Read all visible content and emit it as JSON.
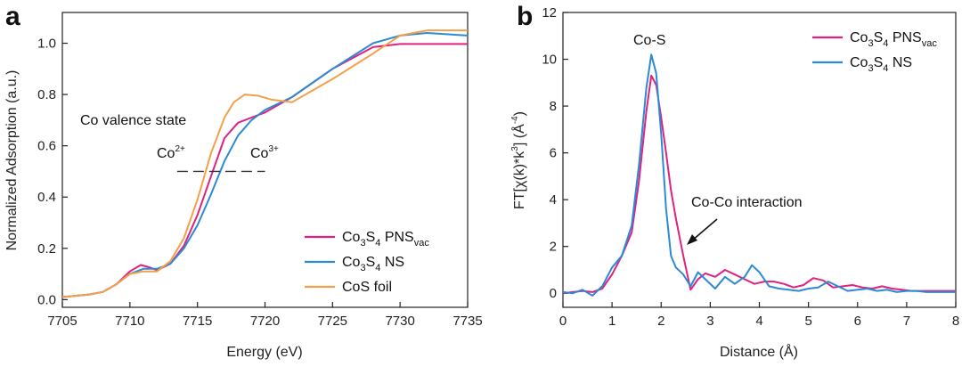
{
  "chart_data": [
    {
      "panel": "a",
      "type": "line",
      "xlabel": "Energy (eV)",
      "ylabel": "Normalized Adsorption (a.u.)",
      "xlim": [
        7705,
        7735
      ],
      "ylim": [
        -0.03,
        1.12
      ],
      "xticks": [
        7705,
        7710,
        7715,
        7720,
        7725,
        7730,
        7735
      ],
      "yticks": [
        0.0,
        0.2,
        0.4,
        0.6,
        0.8,
        1.0
      ],
      "ytick_labels": [
        "0.0",
        "0.2",
        "0.4",
        "0.6",
        "0.8",
        "1.0"
      ],
      "annotations": {
        "title_line": "Co valence state",
        "co2": "Co",
        "co2_sup": "2+",
        "co3": "Co",
        "co3_sup": "3+",
        "dash_range": [
          7713.5,
          7720
        ],
        "dash_y": 0.5
      },
      "series": [
        {
          "name": "Co3S4 PNSvac",
          "label_parts": [
            "Co",
            "3",
            "S",
            "4",
            " PNS",
            "vac"
          ],
          "color": "#e0217f",
          "x": [
            7705,
            7707,
            7708,
            7709,
            7710,
            7710.8,
            7711.5,
            7712,
            7713,
            7714,
            7715,
            7716,
            7717,
            7718,
            7719,
            7720,
            7722,
            7725,
            7728,
            7730,
            7735
          ],
          "y": [
            0.01,
            0.02,
            0.03,
            0.06,
            0.11,
            0.135,
            0.125,
            0.115,
            0.14,
            0.21,
            0.33,
            0.48,
            0.63,
            0.69,
            0.71,
            0.73,
            0.79,
            0.9,
            0.985,
            0.997,
            0.997
          ]
        },
        {
          "name": "Co3S4 NS",
          "label_parts": [
            "Co",
            "3",
            "S",
            "4",
            " NS",
            ""
          ],
          "color": "#2b8ad6",
          "x": [
            7705,
            7707,
            7708,
            7709,
            7710,
            7711,
            7712,
            7713,
            7714,
            7715,
            7716,
            7717,
            7718,
            7719,
            7720,
            7722,
            7725,
            7728,
            7730,
            7732,
            7735
          ],
          "y": [
            0.01,
            0.02,
            0.03,
            0.06,
            0.1,
            0.12,
            0.12,
            0.14,
            0.2,
            0.29,
            0.41,
            0.54,
            0.64,
            0.7,
            0.74,
            0.79,
            0.9,
            1.0,
            1.03,
            1.04,
            1.03
          ]
        },
        {
          "name": "CoS foil",
          "label_parts": [
            "CoS foil",
            "",
            "",
            "",
            "",
            ""
          ],
          "color": "#f3a04a",
          "x": [
            7705,
            7707,
            7708,
            7709,
            7710,
            7711,
            7712,
            7713,
            7714,
            7715,
            7716,
            7717,
            7717.7,
            7718.5,
            7719.5,
            7720.5,
            7722,
            7725,
            7728,
            7730,
            7732,
            7735
          ],
          "y": [
            0.01,
            0.02,
            0.03,
            0.06,
            0.1,
            0.11,
            0.11,
            0.15,
            0.24,
            0.39,
            0.57,
            0.71,
            0.77,
            0.8,
            0.795,
            0.78,
            0.77,
            0.86,
            0.96,
            1.03,
            1.05,
            1.05
          ]
        }
      ],
      "legend_position": "bottom-right"
    },
    {
      "panel": "b",
      "type": "line",
      "xlabel": "Distance (Å)",
      "ylabel_parts": [
        "FT[χ(k)*k",
        "3",
        "] (Å",
        "-4",
        ")"
      ],
      "xlim": [
        0,
        8
      ],
      "ylim": [
        -0.6,
        12
      ],
      "xticks": [
        0,
        1,
        2,
        3,
        4,
        5,
        6,
        7,
        8
      ],
      "yticks": [
        0,
        2,
        4,
        6,
        8,
        10,
        12
      ],
      "annotations": {
        "peak_label": "Co-S",
        "interaction_label": "Co-Co interaction"
      },
      "series": [
        {
          "name": "Co3S4 PNSvac",
          "label_parts": [
            "Co",
            "3",
            "S",
            "4",
            " PNS",
            "vac"
          ],
          "color": "#e0217f",
          "x": [
            0,
            0.2,
            0.4,
            0.6,
            0.8,
            1.0,
            1.2,
            1.4,
            1.55,
            1.7,
            1.8,
            1.9,
            2.0,
            2.1,
            2.2,
            2.3,
            2.45,
            2.6,
            2.75,
            2.9,
            3.1,
            3.3,
            3.5,
            3.7,
            3.9,
            4.1,
            4.3,
            4.5,
            4.7,
            4.9,
            5.1,
            5.3,
            5.5,
            5.7,
            5.9,
            6.1,
            6.3,
            6.5,
            6.7,
            6.9,
            7.1,
            7.3,
            7.5,
            7.7,
            8.0
          ],
          "y": [
            0,
            0.05,
            0.1,
            0.05,
            0.2,
            0.8,
            1.6,
            2.6,
            4.8,
            7.8,
            9.3,
            8.9,
            7.5,
            6.0,
            4.4,
            3.2,
            1.6,
            0.15,
            0.6,
            0.85,
            0.7,
            1.0,
            0.8,
            0.6,
            0.4,
            0.5,
            0.5,
            0.4,
            0.25,
            0.35,
            0.65,
            0.55,
            0.25,
            0.3,
            0.35,
            0.25,
            0.2,
            0.3,
            0.2,
            0.15,
            0.1,
            0.1,
            0.1,
            0.1,
            0.1
          ]
        },
        {
          "name": "Co3S4 NS",
          "label_parts": [
            "Co",
            "3",
            "S",
            "4",
            " NS",
            ""
          ],
          "color": "#2b8ad6",
          "x": [
            0,
            0.2,
            0.4,
            0.6,
            0.8,
            1.0,
            1.2,
            1.4,
            1.55,
            1.7,
            1.8,
            1.9,
            2.0,
            2.1,
            2.2,
            2.3,
            2.45,
            2.6,
            2.75,
            2.9,
            3.1,
            3.3,
            3.5,
            3.7,
            3.85,
            4.0,
            4.2,
            4.4,
            4.6,
            4.8,
            5.0,
            5.2,
            5.4,
            5.6,
            5.8,
            6.0,
            6.2,
            6.4,
            6.6,
            6.8,
            7.0,
            7.2,
            7.4,
            7.6,
            8.0
          ],
          "y": [
            0.05,
            0.0,
            0.15,
            -0.1,
            0.3,
            1.1,
            1.6,
            2.9,
            5.5,
            8.8,
            10.2,
            9.4,
            6.8,
            3.6,
            1.6,
            1.1,
            0.8,
            0.3,
            0.9,
            0.6,
            0.2,
            0.7,
            0.4,
            0.7,
            1.2,
            0.9,
            0.3,
            0.2,
            0.15,
            0.1,
            0.2,
            0.25,
            0.5,
            0.3,
            0.1,
            0.15,
            0.2,
            0.1,
            0.15,
            0.05,
            0.1,
            0.1,
            0.05,
            0.05,
            0.05
          ]
        }
      ],
      "legend_position": "top-right"
    }
  ],
  "panel_labels": [
    "a",
    "b"
  ]
}
